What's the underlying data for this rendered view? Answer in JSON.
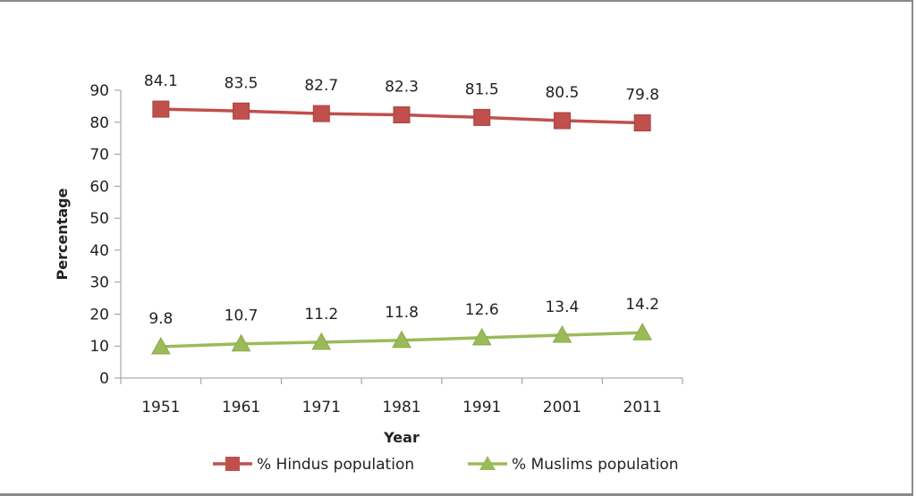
{
  "chart_data": {
    "type": "line",
    "title": "",
    "xlabel": "Year",
    "ylabel": "Percentage",
    "categories": [
      "1951",
      "1961",
      "1971",
      "1981",
      "1991",
      "2001",
      "2011"
    ],
    "ylim": [
      0,
      90
    ],
    "yticks": [
      0,
      10,
      20,
      30,
      40,
      50,
      60,
      70,
      80,
      90
    ],
    "grid": false,
    "legend_position": "bottom",
    "series": [
      {
        "name": "% Hindus population",
        "values": [
          84.1,
          83.5,
          82.7,
          82.3,
          81.5,
          80.5,
          79.8
        ],
        "labels": [
          "84.1",
          "83.5",
          "82.7",
          "82.3",
          "81.5",
          "80.5",
          "79.8"
        ],
        "color": "#c0504d",
        "marker": "square"
      },
      {
        "name": "% Muslims population",
        "values": [
          9.8,
          10.7,
          11.2,
          11.8,
          12.6,
          13.4,
          14.2
        ],
        "labels": [
          "9.8",
          "10.7",
          "11.2",
          "11.8",
          "12.6",
          "13.4",
          "14.2"
        ],
        "color": "#9bbb59",
        "marker": "triangle"
      }
    ]
  }
}
